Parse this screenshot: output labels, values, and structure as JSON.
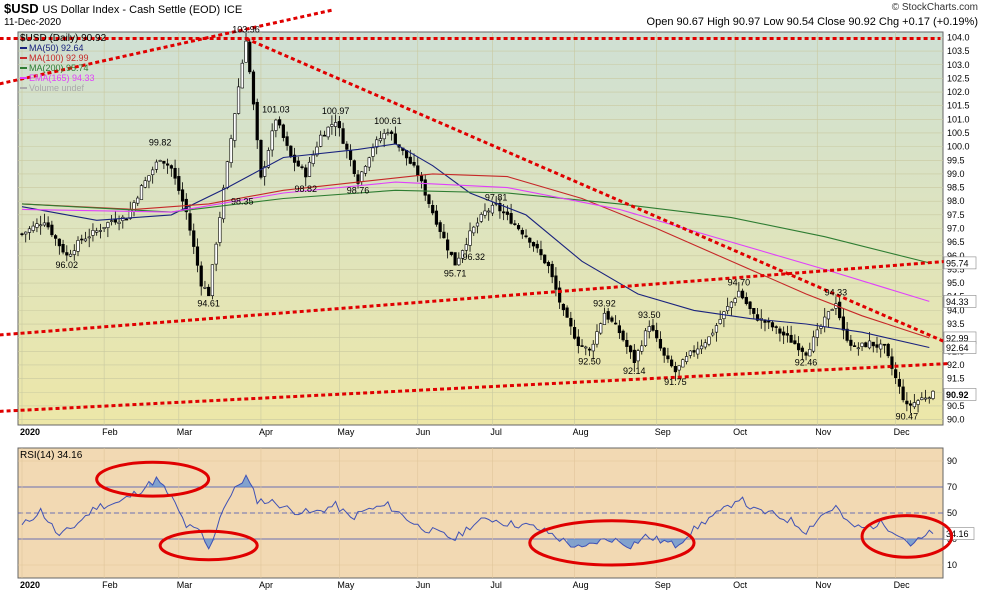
{
  "header": {
    "symbol": "$USD",
    "name": "US Dollar Index - Cash Settle (EOD)",
    "exchange": "ICE",
    "date": "11-Dec-2020",
    "ohlc": "Open 90.67  High 90.97  Low 90.54  Close 90.92  Chg +0.17 (+0.19%)",
    "watermark": "© StockCharts.com"
  },
  "colors": {
    "price_bg_top": "#cfe0d4",
    "price_bg_bottom": "#ede7a8",
    "rsi_bg": "#f2d9b3",
    "candle": "#000000",
    "ma50": "#1a237e",
    "ma100": "#c62828",
    "ma200": "#2e7d32",
    "ema165": "#e040fb",
    "trendline": "#e00000",
    "rsi_line": "#3f51b5"
  },
  "chart_data": [
    {
      "type": "candlestick",
      "title": "$USD (Daily) 90.92",
      "legend": [
        {
          "name": "MA(50) 92.64",
          "color": "#1a237e"
        },
        {
          "name": "MA(100) 92.99",
          "color": "#c62828"
        },
        {
          "name": "MA(200) 95.74",
          "color": "#2e7d32"
        },
        {
          "name": "EMA(165) 94.33",
          "color": "#e040fb"
        },
        {
          "name": "Volume undef",
          "color": "#aaaaaa"
        }
      ],
      "ylim": [
        89.8,
        104.2
      ],
      "yticks": [
        90.0,
        90.5,
        91.0,
        91.5,
        92.0,
        92.5,
        93.0,
        93.5,
        94.0,
        94.5,
        95.0,
        95.5,
        96.0,
        96.5,
        97.0,
        97.5,
        98.0,
        98.5,
        99.0,
        99.5,
        100.0,
        100.5,
        101.0,
        101.5,
        102.0,
        102.5,
        103.0,
        103.5,
        104.0
      ],
      "x_labels": [
        "2020",
        "Feb",
        "Mar",
        "Apr",
        "May",
        "Jun",
        "Jul",
        "Aug",
        "Sep",
        "Oct",
        "Nov",
        "Dec"
      ],
      "x_label_days": [
        0,
        22,
        42,
        64,
        85,
        106,
        126,
        148,
        170,
        191,
        213,
        234
      ],
      "total_days": 245,
      "price_path": [
        [
          0,
          96.8
        ],
        [
          6,
          97.3
        ],
        [
          10,
          96.4
        ],
        [
          12,
          96.0
        ],
        [
          16,
          96.6
        ],
        [
          20,
          96.9
        ],
        [
          24,
          97.3
        ],
        [
          28,
          97.4
        ],
        [
          32,
          98.5
        ],
        [
          37,
          99.6
        ],
        [
          40,
          99.2
        ],
        [
          44,
          97.6
        ],
        [
          48,
          95.0
        ],
        [
          50,
          94.61
        ],
        [
          54,
          98.4
        ],
        [
          58,
          102.2
        ],
        [
          60,
          103.96
        ],
        [
          62,
          101.5
        ],
        [
          64,
          98.8
        ],
        [
          68,
          101.03
        ],
        [
          72,
          99.6
        ],
        [
          76,
          99.0
        ],
        [
          80,
          100.4
        ],
        [
          84,
          100.97
        ],
        [
          88,
          99.5
        ],
        [
          90,
          98.76
        ],
        [
          94,
          100.0
        ],
        [
          98,
          100.61
        ],
        [
          102,
          99.8
        ],
        [
          106,
          99.0
        ],
        [
          110,
          97.6
        ],
        [
          114,
          96.3
        ],
        [
          116,
          95.71
        ],
        [
          120,
          96.8
        ],
        [
          124,
          97.6
        ],
        [
          127,
          97.81
        ],
        [
          131,
          97.3
        ],
        [
          136,
          96.6
        ],
        [
          141,
          95.6
        ],
        [
          145,
          93.9
        ],
        [
          149,
          92.8
        ],
        [
          152,
          92.5
        ],
        [
          156,
          93.92
        ],
        [
          160,
          93.2
        ],
        [
          164,
          92.14
        ],
        [
          168,
          93.5
        ],
        [
          172,
          92.3
        ],
        [
          175,
          91.75
        ],
        [
          179,
          92.4
        ],
        [
          184,
          93.0
        ],
        [
          188,
          93.9
        ],
        [
          192,
          94.7
        ],
        [
          196,
          93.8
        ],
        [
          200,
          93.5
        ],
        [
          205,
          93.0
        ],
        [
          210,
          92.46
        ],
        [
          214,
          93.4
        ],
        [
          218,
          94.33
        ],
        [
          220,
          93.2
        ],
        [
          223,
          92.6
        ],
        [
          227,
          92.8
        ],
        [
          231,
          92.6
        ],
        [
          234,
          91.5
        ],
        [
          237,
          90.47
        ],
        [
          240,
          90.7
        ],
        [
          243,
          90.92
        ]
      ],
      "moving_averages": [
        {
          "name": "MA(50)",
          "color": "#1a237e",
          "points": [
            [
              0,
              97.8
            ],
            [
              20,
              97.3
            ],
            [
              40,
              97.5
            ],
            [
              55,
              98.5
            ],
            [
              70,
              99.6
            ],
            [
              90,
              99.9
            ],
            [
              100,
              100.1
            ],
            [
              110,
              99.3
            ],
            [
              120,
              98.3
            ],
            [
              135,
              97.5
            ],
            [
              150,
              95.8
            ],
            [
              165,
              94.6
            ],
            [
              180,
              94.0
            ],
            [
              195,
              93.7
            ],
            [
              210,
              93.5
            ],
            [
              225,
              93.2
            ],
            [
              243,
              92.64
            ]
          ]
        },
        {
          "name": "MA(100)",
          "color": "#c62828",
          "points": [
            [
              0,
              97.9
            ],
            [
              30,
              97.7
            ],
            [
              50,
              97.9
            ],
            [
              70,
              98.4
            ],
            [
              90,
              98.7
            ],
            [
              110,
              99.0
            ],
            [
              130,
              98.9
            ],
            [
              150,
              98.1
            ],
            [
              170,
              97.0
            ],
            [
              190,
              95.8
            ],
            [
              210,
              94.6
            ],
            [
              225,
              93.8
            ],
            [
              243,
              92.99
            ]
          ]
        },
        {
          "name": "MA(200)",
          "color": "#2e7d32",
          "points": [
            [
              0,
              97.9
            ],
            [
              40,
              97.6
            ],
            [
              70,
              98.1
            ],
            [
              100,
              98.4
            ],
            [
              130,
              98.3
            ],
            [
              160,
              97.9
            ],
            [
              190,
              97.4
            ],
            [
              215,
              96.7
            ],
            [
              243,
              95.74
            ]
          ]
        },
        {
          "name": "EMA(165)",
          "color": "#e040fb",
          "points": [
            [
              0,
              97.7
            ],
            [
              40,
              97.6
            ],
            [
              70,
              98.3
            ],
            [
              100,
              98.7
            ],
            [
              130,
              98.5
            ],
            [
              160,
              97.7
            ],
            [
              190,
              96.5
            ],
            [
              215,
              95.5
            ],
            [
              243,
              94.33
            ]
          ]
        }
      ],
      "price_annotations": [
        {
          "text": "96.02",
          "x": 12,
          "y": 96.02,
          "pos": "below"
        },
        {
          "text": "99.82",
          "x": 37,
          "y": 99.82,
          "pos": "above"
        },
        {
          "text": "94.61",
          "x": 50,
          "y": 94.61,
          "pos": "below"
        },
        {
          "text": "103.96",
          "x": 60,
          "y": 103.96,
          "pos": "above"
        },
        {
          "text": "98.35",
          "x": 59,
          "y": 98.35,
          "pos": "below"
        },
        {
          "text": "101.03",
          "x": 68,
          "y": 101.03,
          "pos": "above"
        },
        {
          "text": "98.82",
          "x": 76,
          "y": 98.82,
          "pos": "below"
        },
        {
          "text": "100.97",
          "x": 84,
          "y": 100.97,
          "pos": "above"
        },
        {
          "text": "98.76",
          "x": 90,
          "y": 98.76,
          "pos": "below"
        },
        {
          "text": "100.61",
          "x": 98,
          "y": 100.61,
          "pos": "above"
        },
        {
          "text": "95.71",
          "x": 116,
          "y": 95.71,
          "pos": "below"
        },
        {
          "text": "97.81",
          "x": 127,
          "y": 97.81,
          "pos": "above"
        },
        {
          "text": "96.32",
          "x": 121,
          "y": 96.32,
          "pos": "below"
        },
        {
          "text": "93.92",
          "x": 156,
          "y": 93.92,
          "pos": "above"
        },
        {
          "text": "92.50",
          "x": 152,
          "y": 92.5,
          "pos": "below"
        },
        {
          "text": "93.50",
          "x": 168,
          "y": 93.5,
          "pos": "above"
        },
        {
          "text": "92.14",
          "x": 164,
          "y": 92.14,
          "pos": "below"
        },
        {
          "text": "91.75",
          "x": 175,
          "y": 91.75,
          "pos": "below"
        },
        {
          "text": "94.70",
          "x": 192,
          "y": 94.7,
          "pos": "above"
        },
        {
          "text": "92.46",
          "x": 210,
          "y": 92.46,
          "pos": "below"
        },
        {
          "text": "94.33",
          "x": 218,
          "y": 94.33,
          "pos": "above"
        },
        {
          "text": "90.47",
          "x": 237,
          "y": 90.47,
          "pos": "below"
        }
      ],
      "trendlines": [
        {
          "from": [
            -6,
            102.3
          ],
          "to": [
            83,
            105.0
          ]
        },
        {
          "from": [
            -6,
            103.96
          ],
          "to": [
            246,
            103.96
          ]
        },
        {
          "from": [
            60,
            103.96
          ],
          "to": [
            248,
            92.8
          ]
        },
        {
          "from": [
            -6,
            93.1
          ],
          "to": [
            248,
            95.8
          ]
        },
        {
          "from": [
            -6,
            90.3
          ],
          "to": [
            248,
            92.05
          ]
        }
      ],
      "right_labels": [
        {
          "text": "95.74",
          "y": 95.74
        },
        {
          "text": "94.33",
          "y": 94.33
        },
        {
          "text": "92.99",
          "y": 92.99
        },
        {
          "text": "92.64",
          "y": 92.64
        },
        {
          "text": "90.92",
          "y": 90.92
        }
      ]
    },
    {
      "type": "line",
      "title": "RSI(14) 34.16",
      "ylim": [
        0,
        100
      ],
      "yticks": [
        10,
        30,
        50,
        70,
        90
      ],
      "reference_lines": [
        30,
        50,
        70
      ],
      "x_labels": [
        "2020",
        "Feb",
        "Mar",
        "Apr",
        "May",
        "Jun",
        "Jul",
        "Aug",
        "Sep",
        "Oct",
        "Nov",
        "Dec"
      ],
      "last_value_label": "34.16",
      "series": [
        {
          "values": [
            [
              0,
              40
            ],
            [
              5,
              52
            ],
            [
              10,
              32
            ],
            [
              14,
              40
            ],
            [
              20,
              55
            ],
            [
              26,
              58
            ],
            [
              32,
              68
            ],
            [
              36,
              76
            ],
            [
              40,
              62
            ],
            [
              44,
              40
            ],
            [
              48,
              35
            ],
            [
              50,
              21
            ],
            [
              54,
              55
            ],
            [
              58,
              72
            ],
            [
              60,
              78
            ],
            [
              63,
              60
            ],
            [
              68,
              58
            ],
            [
              72,
              52
            ],
            [
              78,
              50
            ],
            [
              84,
              56
            ],
            [
              88,
              46
            ],
            [
              92,
              52
            ],
            [
              98,
              56
            ],
            [
              102,
              48
            ],
            [
              106,
              40
            ],
            [
              110,
              36
            ],
            [
              116,
              30
            ],
            [
              120,
              40
            ],
            [
              125,
              46
            ],
            [
              130,
              42
            ],
            [
              136,
              40
            ],
            [
              141,
              35
            ],
            [
              146,
              27
            ],
            [
              150,
              22
            ],
            [
              154,
              28
            ],
            [
              158,
              30
            ],
            [
              163,
              25
            ],
            [
              167,
              32
            ],
            [
              172,
              28
            ],
            [
              175,
              25
            ],
            [
              179,
              35
            ],
            [
              184,
              46
            ],
            [
              188,
              52
            ],
            [
              192,
              62
            ],
            [
              196,
              52
            ],
            [
              200,
              50
            ],
            [
              206,
              44
            ],
            [
              210,
              36
            ],
            [
              214,
              48
            ],
            [
              218,
              55
            ],
            [
              221,
              42
            ],
            [
              225,
              38
            ],
            [
              230,
              42
            ],
            [
              234,
              36
            ],
            [
              238,
              26
            ],
            [
              241,
              30
            ],
            [
              243,
              34.16
            ]
          ]
        }
      ]
    }
  ]
}
